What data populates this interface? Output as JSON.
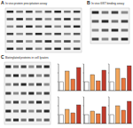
{
  "panels": [
    {
      "label": "A",
      "title": "In vivo protein precipitation assay"
    },
    {
      "label": "B",
      "title": "In vivo GST binding assay"
    },
    {
      "label": "C",
      "title": "Biotinylated proteins in cell lysates"
    }
  ],
  "chart_data": [
    {
      "type": "bar",
      "categories": [
        null,
        null,
        null,
        null
      ],
      "values": [
        1,
        2.2,
        1.3,
        2.6
      ],
      "colors": [
        "#ffffff",
        "#f2a65a",
        "#e8743b",
        "#c0392b"
      ],
      "ylim": [
        0,
        3
      ],
      "yticks": [
        0,
        1,
        2,
        3
      ],
      "tick_labels": false
    },
    {
      "type": "bar",
      "categories": [
        null,
        null,
        null,
        null
      ],
      "values": [
        1,
        1.8,
        1.1,
        2.3
      ],
      "colors": [
        "#ffffff",
        "#f2a65a",
        "#e8743b",
        "#c0392b"
      ],
      "ylim": [
        0,
        3
      ],
      "yticks": [
        0,
        1,
        2,
        3
      ],
      "tick_labels": false
    },
    {
      "type": "bar",
      "categories": [
        null,
        null,
        null,
        null
      ],
      "values": [
        1,
        2.5,
        1.4,
        2.8
      ],
      "colors": [
        "#ffffff",
        "#f2a65a",
        "#e8743b",
        "#c0392b"
      ],
      "ylim": [
        0,
        3
      ],
      "yticks": [
        0,
        1,
        2,
        3
      ],
      "tick_labels": false
    },
    {
      "type": "bar",
      "categories": [
        null,
        null,
        null,
        null
      ],
      "values": [
        1,
        1.6,
        1.2,
        2.1
      ],
      "colors": [
        "#ffffff",
        "#f2a65a",
        "#e8743b",
        "#c0392b"
      ],
      "ylim": [
        0,
        3
      ],
      "yticks": [
        0,
        1,
        2,
        3
      ],
      "tick_labels": false
    },
    {
      "type": "bar",
      "categories": [
        null,
        null,
        null,
        null
      ],
      "values": [
        1,
        1.4,
        1.1,
        1.9
      ],
      "colors": [
        "#ffffff",
        "#f2a65a",
        "#e8743b",
        "#c0392b"
      ],
      "ylim": [
        0,
        3
      ],
      "yticks": [
        0,
        1,
        2,
        3
      ],
      "tick_labels": false
    },
    {
      "type": "bar",
      "categories": [
        null,
        null,
        null,
        null
      ],
      "values": [
        1,
        2.0,
        1.5,
        2.5
      ],
      "colors": [
        "#ffffff",
        "#f2a65a",
        "#e8743b",
        "#c0392b"
      ],
      "ylim": [
        0,
        3
      ],
      "yticks": [
        0,
        1,
        2,
        3
      ],
      "tick_labels": false
    }
  ]
}
